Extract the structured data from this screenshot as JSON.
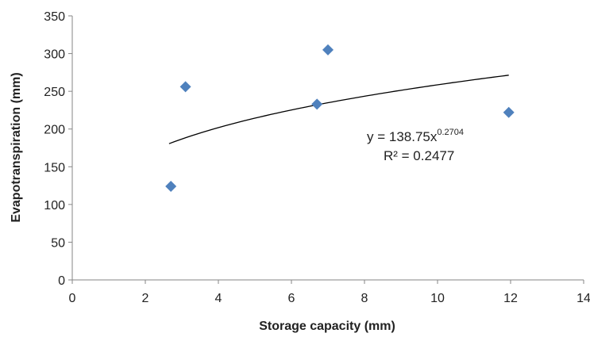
{
  "chart_data": {
    "type": "scatter",
    "title": "",
    "xlabel": "Storage capacity (mm)",
    "ylabel": "Evapotranspiration (mm)",
    "xlim": [
      0,
      14
    ],
    "ylim": [
      0,
      350
    ],
    "xticks": [
      0,
      2,
      4,
      6,
      8,
      10,
      12,
      14
    ],
    "yticks": [
      0,
      50,
      100,
      150,
      200,
      250,
      300,
      350
    ],
    "grid": false,
    "legend": "none",
    "marker": "diamond",
    "marker_color": "#4f81bd",
    "series": [
      {
        "points": [
          {
            "x": 2.7,
            "y": 124
          },
          {
            "x": 3.1,
            "y": 256
          },
          {
            "x": 6.7,
            "y": 233
          },
          {
            "x": 7.0,
            "y": 305
          },
          {
            "x": 11.95,
            "y": 222
          }
        ]
      }
    ],
    "trendline": {
      "type": "power",
      "a": 138.75,
      "b": 0.2704,
      "x_range": [
        2.65,
        11.95
      ],
      "color": "#000000"
    },
    "annotations": {
      "equation_base": "y = 138.75x",
      "equation_exponent": "0.2704",
      "r_squared": "R² = 0.2477"
    }
  }
}
